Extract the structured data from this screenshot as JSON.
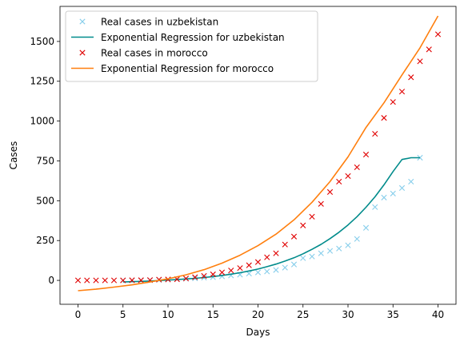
{
  "chart_data": {
    "type": "line",
    "xlabel": "Days",
    "ylabel": "Cases",
    "xlim": [
      -2,
      42
    ],
    "ylim": [
      -150,
      1720
    ],
    "xticks": [
      0,
      5,
      10,
      15,
      20,
      25,
      30,
      35,
      40
    ],
    "yticks": [
      0,
      250,
      500,
      750,
      1000,
      1250,
      1500
    ],
    "grid": false,
    "legend_position": "upper-left",
    "series": [
      {
        "name": "Real cases in uzbekistan",
        "kind": "scatter",
        "marker": "x",
        "color": "#87ceeb",
        "x": [
          5,
          6,
          7,
          8,
          9,
          10,
          11,
          12,
          13,
          14,
          15,
          16,
          17,
          18,
          19,
          20,
          21,
          22,
          23,
          24,
          25,
          26,
          27,
          28,
          29,
          30,
          31,
          32,
          33,
          34,
          35,
          36,
          37,
          38
        ],
        "y": [
          0,
          0,
          1,
          1,
          3,
          5,
          8,
          10,
          13,
          17,
          20,
          25,
          31,
          36,
          43,
          50,
          56,
          65,
          80,
          100,
          140,
          150,
          170,
          185,
          200,
          220,
          260,
          330,
          460,
          520,
          545,
          580,
          620,
          770
        ]
      },
      {
        "name": "Exponential Regression for uzbekistan",
        "kind": "line",
        "color": "#008b8b",
        "x": [
          5,
          6,
          7,
          8,
          9,
          10,
          11,
          12,
          13,
          14,
          15,
          16,
          17,
          18,
          19,
          20,
          21,
          22,
          23,
          24,
          25,
          26,
          27,
          28,
          29,
          30,
          31,
          32,
          33,
          34,
          35,
          36,
          37,
          38
        ],
        "y": [
          -10,
          -8,
          -6,
          -4,
          -1,
          2,
          5,
          9,
          13,
          18,
          24,
          31,
          39,
          48,
          59,
          71,
          86,
          102,
          121,
          142,
          167,
          195,
          226,
          262,
          302,
          348,
          400,
          459,
          525,
          600,
          683,
          759,
          770,
          770
        ]
      },
      {
        "name": "Real cases in morocco",
        "kind": "scatter",
        "marker": "x",
        "color": "#e00000",
        "x": [
          0,
          1,
          2,
          3,
          4,
          5,
          6,
          7,
          8,
          9,
          10,
          11,
          12,
          13,
          14,
          15,
          16,
          17,
          18,
          19,
          20,
          21,
          22,
          23,
          24,
          25,
          26,
          27,
          28,
          29,
          30,
          31,
          32,
          33,
          34,
          35,
          36,
          37,
          38,
          39,
          40
        ],
        "y": [
          0,
          0,
          0,
          0,
          0,
          0,
          1,
          1,
          2,
          5,
          6,
          7,
          12,
          20,
          28,
          38,
          50,
          62,
          77,
          95,
          115,
          145,
          170,
          225,
          275,
          345,
          400,
          480,
          555,
          620,
          655,
          710,
          790,
          920,
          1020,
          1120,
          1185,
          1275,
          1375,
          1450,
          1545
        ]
      },
      {
        "name": "Exponential Regression for morocco",
        "kind": "line",
        "color": "#ff7f0e",
        "x": [
          0,
          2,
          4,
          6,
          8,
          10,
          12,
          14,
          16,
          18,
          20,
          22,
          24,
          26,
          28,
          30,
          32,
          34,
          36,
          38,
          40
        ],
        "y": [
          -65,
          -55,
          -42,
          -28,
          -10,
          10,
          35,
          67,
          108,
          158,
          218,
          290,
          380,
          490,
          620,
          775,
          960,
          1115,
          1290,
          1460,
          1660
        ]
      }
    ]
  }
}
